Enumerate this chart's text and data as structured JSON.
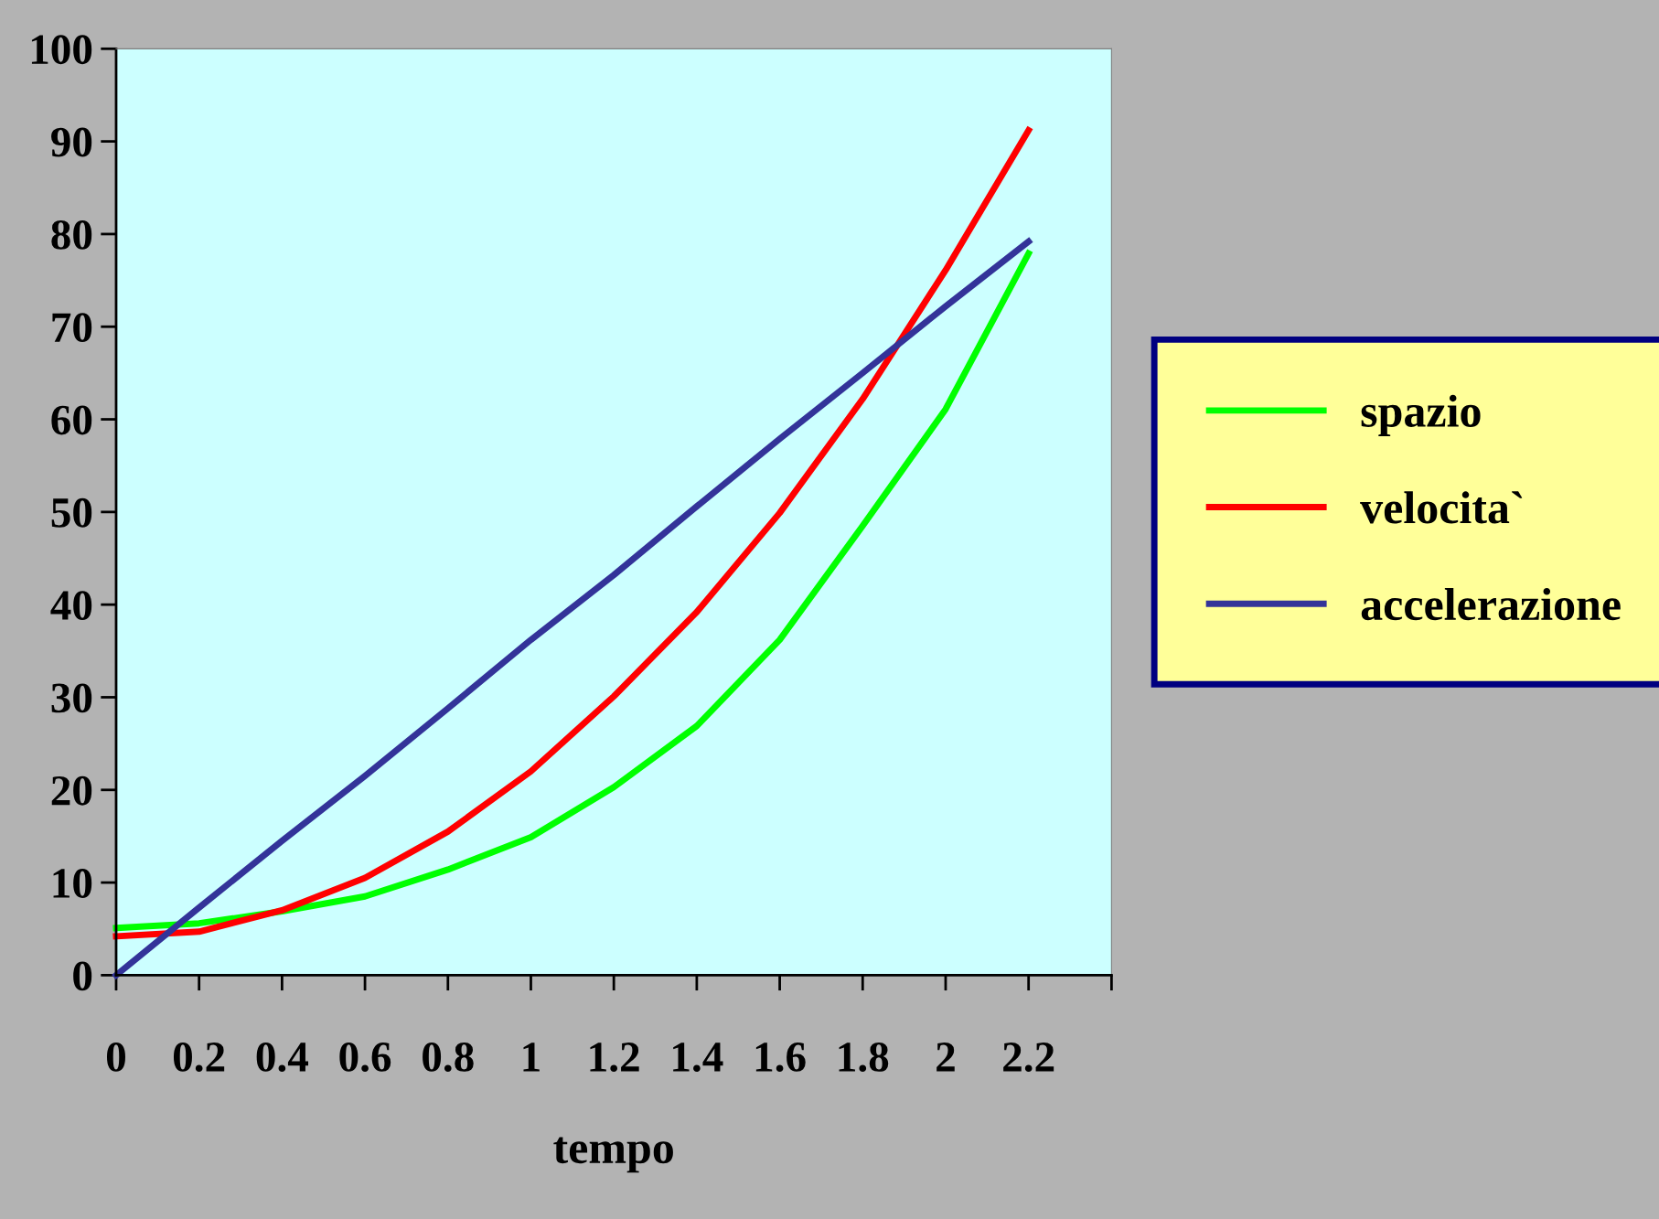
{
  "chart_data": {
    "type": "line",
    "xlabel": "tempo",
    "x": [
      0,
      0.2,
      0.4,
      0.6,
      0.8,
      1,
      1.2,
      1.4,
      1.6,
      1.8,
      2,
      2.2
    ],
    "xlim": [
      0,
      2.4
    ],
    "xticks": [
      0,
      {
        "value": 0.2,
        "label": "0.2"
      },
      {
        "value": 0.4,
        "label": "0.4"
      },
      {
        "value": 0.6,
        "label": "0.6"
      },
      {
        "value": 0.8,
        "label": "0.8"
      },
      1,
      {
        "value": 1.2,
        "label": "1.2"
      },
      {
        "value": 1.4,
        "label": "1.4"
      },
      {
        "value": 1.6,
        "label": "1.6"
      },
      {
        "value": 1.8,
        "label": "1.8"
      },
      2,
      {
        "value": 2.2,
        "label": "2.2"
      },
      {
        "value": 2.4,
        "label": null
      }
    ],
    "ylim": [
      0,
      100
    ],
    "yticks": [
      0,
      10,
      20,
      30,
      40,
      50,
      60,
      70,
      80,
      90,
      100
    ],
    "grid": false,
    "legend": "right",
    "marker": "none",
    "line_style": "solid",
    "series": [
      {
        "name": "spazio",
        "color": "#00ff00",
        "values": [
          5.1,
          5.6,
          6.9,
          8.5,
          11.4,
          14.9,
          20.3,
          26.9,
          36.2,
          48.5,
          61.1,
          77.9
        ]
      },
      {
        "name": "velocita`",
        "color": "#ff0000",
        "values": [
          4.2,
          4.7,
          7.0,
          10.5,
          15.5,
          22.0,
          30.1,
          39.2,
          49.9,
          62.2,
          76.1,
          91.2
        ]
      },
      {
        "name": "accelerazione",
        "color": "#333399",
        "values": [
          0,
          7.3,
          14.5,
          21.5,
          28.8,
          36.2,
          43.2,
          50.6,
          57.9,
          65.0,
          72.2,
          79.2
        ]
      }
    ]
  }
}
